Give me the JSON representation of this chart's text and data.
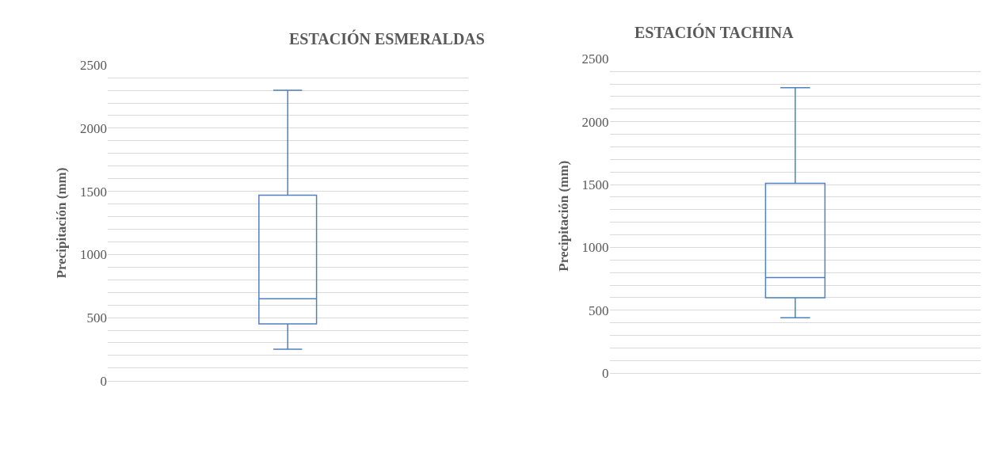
{
  "chart_data": [
    {
      "type": "box",
      "title": "ESTACIÓN ESMERALDAS",
      "ylabel": "Precipitación (mm)",
      "categories": [
        null
      ],
      "color": "#4f81bd",
      "boxes": [
        {
          "low": 250,
          "q1": 450,
          "median": 650,
          "q3": 1470,
          "high": 2300
        }
      ],
      "ylim": [
        0,
        2500
      ],
      "yticks": [
        0,
        {
          "value": 100,
          "label": null
        },
        {
          "value": 200,
          "label": null
        },
        {
          "value": 300,
          "label": null
        },
        {
          "value": 400,
          "label": null
        },
        500,
        {
          "value": 600,
          "label": null
        },
        {
          "value": 700,
          "label": null
        },
        {
          "value": 800,
          "label": null
        },
        {
          "value": 900,
          "label": null
        },
        1000,
        {
          "value": 1100,
          "label": null
        },
        {
          "value": 1200,
          "label": null
        },
        {
          "value": 1300,
          "label": null
        },
        {
          "value": 1400,
          "label": null
        },
        1500,
        {
          "value": 1600,
          "label": null
        },
        {
          "value": 1700,
          "label": null
        },
        {
          "value": 1800,
          "label": null
        },
        {
          "value": 1900,
          "label": null
        },
        2000,
        {
          "value": 2100,
          "label": null
        },
        {
          "value": 2200,
          "label": null
        },
        {
          "value": 2300,
          "label": null
        },
        {
          "value": 2400,
          "label": null
        },
        2500
      ],
      "grid": "y",
      "tick_labels": "y"
    },
    {
      "type": "box",
      "title": "ESTACIÓN TACHINA",
      "ylabel": "Precipitación (mm)",
      "categories": [
        null
      ],
      "color": "#4f81bd",
      "boxes": [
        {
          "low": 440,
          "q1": 600,
          "median": 760,
          "q3": 1510,
          "high": 2270
        }
      ],
      "ylim": [
        0,
        2500
      ],
      "yticks": [
        0,
        {
          "value": 100,
          "label": null
        },
        {
          "value": 200,
          "label": null
        },
        {
          "value": 300,
          "label": null
        },
        {
          "value": 400,
          "label": null
        },
        500,
        {
          "value": 600,
          "label": null
        },
        {
          "value": 700,
          "label": null
        },
        {
          "value": 800,
          "label": null
        },
        {
          "value": 900,
          "label": null
        },
        1000,
        {
          "value": 1100,
          "label": null
        },
        {
          "value": 1200,
          "label": null
        },
        {
          "value": 1300,
          "label": null
        },
        {
          "value": 1400,
          "label": null
        },
        1500,
        {
          "value": 1600,
          "label": null
        },
        {
          "value": 1700,
          "label": null
        },
        {
          "value": 1800,
          "label": null
        },
        {
          "value": 1900,
          "label": null
        },
        2000,
        {
          "value": 2100,
          "label": null
        },
        {
          "value": 2200,
          "label": null
        },
        {
          "value": 2300,
          "label": null
        },
        {
          "value": 2400,
          "label": null
        },
        2500
      ],
      "grid": "y",
      "tick_labels": "y"
    }
  ]
}
